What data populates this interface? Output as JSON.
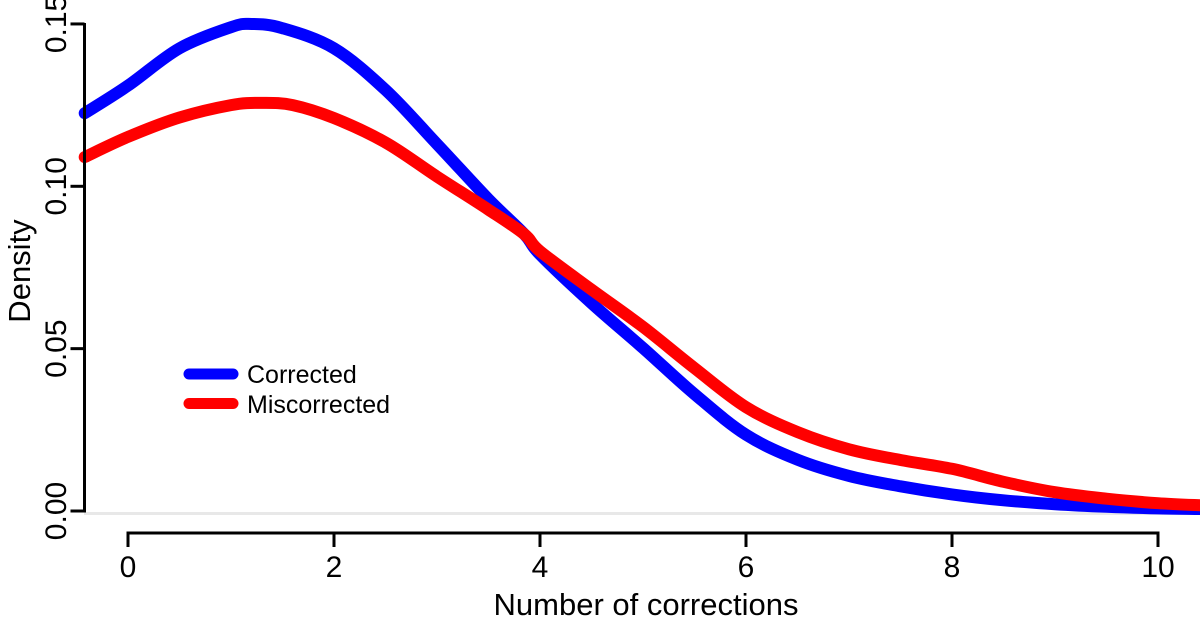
{
  "figure": {
    "background": "#ffffff",
    "axis_color": "#000000",
    "zero_line_color": "#e8e8e8"
  },
  "legend": {
    "items": [
      {
        "label": "Corrected",
        "color": "#0000ff"
      },
      {
        "label": "Miscorrected",
        "color": "#ff0000"
      }
    ]
  },
  "chart_data": {
    "type": "line",
    "title": "",
    "xlabel": "Number of corrections",
    "ylabel": "Density",
    "xlim": [
      -0.42,
      10.45
    ],
    "ylim": [
      0,
      0.15
    ],
    "x_ticks": [
      0,
      2,
      4,
      6,
      8,
      10
    ],
    "x_tick_labels": [
      "0",
      "2",
      "4",
      "6",
      "8",
      "10"
    ],
    "y_ticks": [
      0,
      0.05,
      0.1,
      0.15
    ],
    "y_tick_labels": [
      "0.00",
      "0.05",
      "0.10",
      "0.15"
    ],
    "grid": false,
    "legend_position": "left-middle",
    "zero_baseline": true,
    "series": [
      {
        "name": "Corrected",
        "color": "#0000ff",
        "x": [
          -0.42,
          0,
          0.5,
          1.0,
          1.2,
          1.5,
          2.0,
          2.5,
          3.0,
          3.5,
          3.85,
          4.0,
          4.5,
          5.0,
          5.5,
          6.0,
          6.5,
          7.0,
          7.5,
          8.0,
          8.5,
          9.0,
          9.5,
          10.0,
          10.45
        ],
        "y": [
          0.1225,
          0.131,
          0.1425,
          0.149,
          0.15,
          0.1487,
          0.1425,
          0.1297,
          0.113,
          0.096,
          0.0852,
          0.079,
          0.064,
          0.0502,
          0.036,
          0.0235,
          0.0158,
          0.0108,
          0.0076,
          0.0051,
          0.0033,
          0.0021,
          0.0013,
          0.0008,
          0.0006
        ]
      },
      {
        "name": "Miscorrected",
        "color": "#ff0000",
        "x": [
          -0.42,
          0,
          0.5,
          1.0,
          1.3,
          1.6,
          2.0,
          2.5,
          3.0,
          3.5,
          3.85,
          4.0,
          4.5,
          5.0,
          5.5,
          6.0,
          6.5,
          7.0,
          7.5,
          8.0,
          8.5,
          9.0,
          9.5,
          10.0,
          10.45
        ],
        "y": [
          0.109,
          0.1152,
          0.1212,
          0.125,
          0.1257,
          0.125,
          0.121,
          0.1135,
          0.103,
          0.0928,
          0.0852,
          0.08,
          0.0682,
          0.0567,
          0.044,
          0.032,
          0.0243,
          0.019,
          0.0157,
          0.013,
          0.009,
          0.0058,
          0.0038,
          0.0024,
          0.0017
        ]
      }
    ]
  }
}
